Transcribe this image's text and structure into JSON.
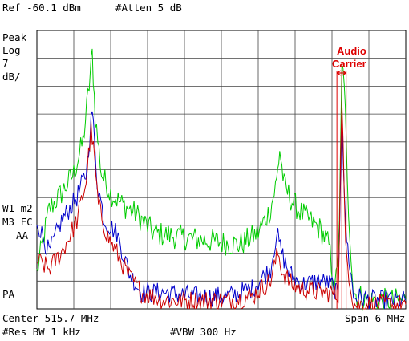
{
  "header": {
    "ref_level": "Ref -60.1 dBm",
    "atten": "#Atten 5 dB"
  },
  "left_panel": {
    "detector": "Peak",
    "scale_type": "Log",
    "scale_value": "7",
    "scale_unit": "dB/",
    "w1": "W1 m2",
    "m3": "M3 FC",
    "aa": "AA",
    "pa": "PA"
  },
  "annotation": {
    "line1": "Audio",
    "line2": "Carrier",
    "color": "#dd0000"
  },
  "footer": {
    "center": "Center 515.7 MHz",
    "span": "Span 6 MHz",
    "res_bw": "#Res BW 1 kHz",
    "vbw": "#VBW 300 Hz"
  },
  "chart_data": {
    "type": "line",
    "x_range_mhz": [
      512.7,
      518.7
    ],
    "y_range_dbm": [
      -130.1,
      -60.1
    ],
    "grid": true,
    "series": [
      {
        "color": "#00cc00",
        "points": [
          [
            512.7,
            -121
          ],
          [
            512.9,
            -105
          ],
          [
            513.1,
            -101
          ],
          [
            513.3,
            -96
          ],
          [
            513.45,
            -88
          ],
          [
            513.55,
            -74
          ],
          [
            513.6,
            -66
          ],
          [
            513.65,
            -82
          ],
          [
            513.75,
            -96
          ],
          [
            513.9,
            -101
          ],
          [
            514.1,
            -104
          ],
          [
            514.3,
            -106
          ],
          [
            514.6,
            -111
          ],
          [
            515.0,
            -112
          ],
          [
            515.5,
            -113
          ],
          [
            516.0,
            -114
          ],
          [
            516.3,
            -111
          ],
          [
            516.5,
            -105
          ],
          [
            516.6,
            -98
          ],
          [
            516.65,
            -90
          ],
          [
            516.72,
            -99
          ],
          [
            516.85,
            -103
          ],
          [
            517.0,
            -106
          ],
          [
            517.3,
            -110
          ],
          [
            517.45,
            -114
          ],
          [
            517.55,
            -126
          ],
          [
            517.62,
            -110
          ],
          [
            517.66,
            -70
          ],
          [
            517.7,
            -72
          ],
          [
            517.75,
            -100
          ],
          [
            517.85,
            -126
          ],
          [
            518.1,
            -128
          ],
          [
            518.4,
            -128
          ],
          [
            518.7,
            -128
          ]
        ]
      },
      {
        "color": "#0000cc",
        "points": [
          [
            512.7,
            -108
          ],
          [
            512.9,
            -116
          ],
          [
            513.1,
            -108
          ],
          [
            513.35,
            -102
          ],
          [
            513.5,
            -96
          ],
          [
            513.6,
            -80
          ],
          [
            513.68,
            -98
          ],
          [
            513.8,
            -108
          ],
          [
            514.0,
            -111
          ],
          [
            514.2,
            -121
          ],
          [
            514.4,
            -126
          ],
          [
            514.8,
            -126
          ],
          [
            515.3,
            -127
          ],
          [
            515.8,
            -127
          ],
          [
            516.2,
            -125
          ],
          [
            516.5,
            -120
          ],
          [
            516.6,
            -111
          ],
          [
            516.68,
            -116
          ],
          [
            516.8,
            -121
          ],
          [
            517.0,
            -124
          ],
          [
            517.3,
            -123
          ],
          [
            517.5,
            -124
          ],
          [
            517.6,
            -127
          ],
          [
            517.66,
            -80
          ],
          [
            517.72,
            -110
          ],
          [
            517.85,
            -127
          ],
          [
            518.2,
            -128
          ],
          [
            518.7,
            -128
          ]
        ]
      },
      {
        "color": "#cc0000",
        "points": [
          [
            512.7,
            -118
          ],
          [
            512.9,
            -120
          ],
          [
            513.1,
            -116
          ],
          [
            513.35,
            -108
          ],
          [
            513.5,
            -98
          ],
          [
            513.58,
            -85
          ],
          [
            513.62,
            -90
          ],
          [
            513.7,
            -104
          ],
          [
            513.85,
            -112
          ],
          [
            514.0,
            -116
          ],
          [
            514.2,
            -122
          ],
          [
            514.4,
            -126
          ],
          [
            514.8,
            -128
          ],
          [
            515.3,
            -128
          ],
          [
            515.8,
            -128
          ],
          [
            516.2,
            -127
          ],
          [
            516.5,
            -123
          ],
          [
            516.62,
            -116
          ],
          [
            516.7,
            -121
          ],
          [
            516.85,
            -124
          ],
          [
            517.0,
            -125
          ],
          [
            517.3,
            -126
          ],
          [
            517.5,
            -126
          ],
          [
            517.6,
            -127
          ],
          [
            517.66,
            -76
          ],
          [
            517.72,
            -115
          ],
          [
            517.85,
            -129
          ],
          [
            518.3,
            -129
          ],
          [
            518.7,
            -129
          ]
        ]
      }
    ],
    "marker_lines_mhz": [
      517.58,
      517.66,
      517.73
    ]
  }
}
